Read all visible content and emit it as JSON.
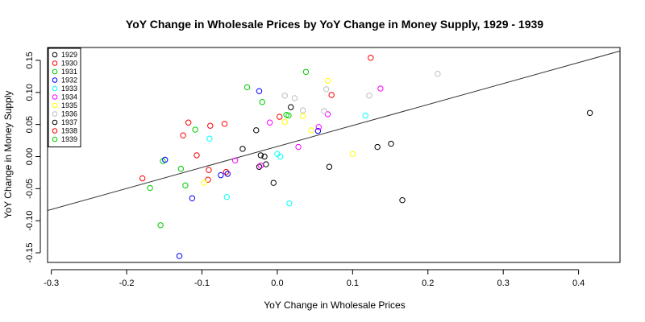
{
  "chart_data": {
    "type": "scatter",
    "title": "YoY Change in Wholesale Prices by YoY Change in Money Supply,  1929 - 1939",
    "xlabel": "YoY Change in Wholesale Prices",
    "ylabel": "YoY Change in Money Supply",
    "xlim": [
      -0.305,
      0.455
    ],
    "ylim": [
      -0.165,
      0.17
    ],
    "xticks": [
      "-0.3",
      "-0.2",
      "-0.1",
      "0.0",
      "0.1",
      "0.2",
      "0.3",
      "0.4"
    ],
    "yticks": [
      "-0.15",
      "-0.10",
      "-0.05",
      "0.00",
      "0.05",
      "0.10",
      "0.15"
    ],
    "legend_position": "top-left",
    "regression_line": {
      "intercept": 0.0157,
      "slope": 0.327
    },
    "series": [
      {
        "name": "1929",
        "color": "#000000",
        "points": [
          [
            -0.028,
            0.041
          ],
          [
            0.018,
            0.077
          ],
          [
            -0.024,
            -0.016
          ],
          [
            -0.015,
            -0.012
          ],
          [
            0.069,
            -0.016
          ],
          [
            0.133,
            0.015
          ],
          [
            0.151,
            0.02
          ],
          [
            0.166,
            -0.068
          ],
          [
            0.415,
            0.068
          ],
          [
            -0.005,
            -0.041
          ]
        ]
      },
      {
        "name": "1930",
        "color": "#ff0000",
        "points": [
          [
            -0.118,
            0.053
          ],
          [
            -0.125,
            0.033
          ],
          [
            -0.089,
            0.048
          ],
          [
            -0.07,
            0.051
          ],
          [
            -0.107,
            0.002
          ],
          [
            -0.091,
            -0.021
          ],
          [
            -0.092,
            -0.036
          ],
          [
            -0.068,
            -0.024
          ],
          [
            -0.179,
            -0.034
          ],
          [
            0.072,
            0.096
          ],
          [
            0.124,
            0.154
          ]
        ]
      },
      {
        "name": "1931",
        "color": "#00cc00",
        "points": [
          [
            -0.04,
            0.108
          ],
          [
            0.038,
            0.132
          ],
          [
            -0.02,
            0.085
          ],
          [
            0.012,
            0.065
          ],
          [
            -0.109,
            0.042
          ],
          [
            -0.152,
            -0.007
          ],
          [
            -0.128,
            -0.019
          ],
          [
            -0.169,
            -0.049
          ],
          [
            -0.122,
            -0.045
          ],
          [
            -0.155,
            -0.107
          ]
        ]
      },
      {
        "name": "1932",
        "color": "#0000ff",
        "points": [
          [
            -0.024,
            0.102
          ],
          [
            -0.149,
            -0.005
          ],
          [
            -0.075,
            -0.029
          ],
          [
            -0.066,
            -0.027
          ],
          [
            -0.113,
            -0.065
          ],
          [
            -0.13,
            -0.155
          ],
          [
            0.054,
            0.04
          ]
        ]
      },
      {
        "name": "1933",
        "color": "#00ffff",
        "points": [
          [
            -0.09,
            0.028
          ],
          [
            0.0,
            0.004
          ],
          [
            0.004,
            0.0
          ],
          [
            -0.067,
            -0.063
          ],
          [
            0.016,
            -0.073
          ],
          [
            0.117,
            0.064
          ]
        ]
      },
      {
        "name": "1934",
        "color": "#ff00ff",
        "points": [
          [
            -0.01,
            0.053
          ],
          [
            0.055,
            0.046
          ],
          [
            0.067,
            0.066
          ],
          [
            0.137,
            0.106
          ],
          [
            -0.056,
            -0.006
          ],
          [
            -0.022,
            -0.014
          ],
          [
            0.028,
            0.015
          ]
        ]
      },
      {
        "name": "1935",
        "color": "#ffff00",
        "points": [
          [
            0.01,
            0.054
          ],
          [
            0.034,
            0.063
          ],
          [
            0.045,
            0.041
          ],
          [
            0.067,
            0.118
          ],
          [
            -0.097,
            -0.041
          ],
          [
            0.1,
            0.004
          ]
        ]
      },
      {
        "name": "1936",
        "color": "#bebebe",
        "points": [
          [
            0.01,
            0.095
          ],
          [
            0.023,
            0.091
          ],
          [
            0.065,
            0.105
          ],
          [
            0.122,
            0.095
          ],
          [
            0.213,
            0.129
          ],
          [
            0.034,
            0.072
          ],
          [
            0.062,
            0.071
          ]
        ]
      },
      {
        "name": "1937",
        "color": "#000000",
        "points": [
          [
            -0.046,
            0.012
          ],
          [
            -0.022,
            0.002
          ],
          [
            -0.017,
            0.0
          ]
        ]
      },
      {
        "name": "1938",
        "color": "#ff0000",
        "points": [
          [
            0.003,
            0.062
          ]
        ]
      },
      {
        "name": "1939",
        "color": "#00cc00",
        "points": [
          [
            0.015,
            0.064
          ]
        ]
      }
    ]
  }
}
